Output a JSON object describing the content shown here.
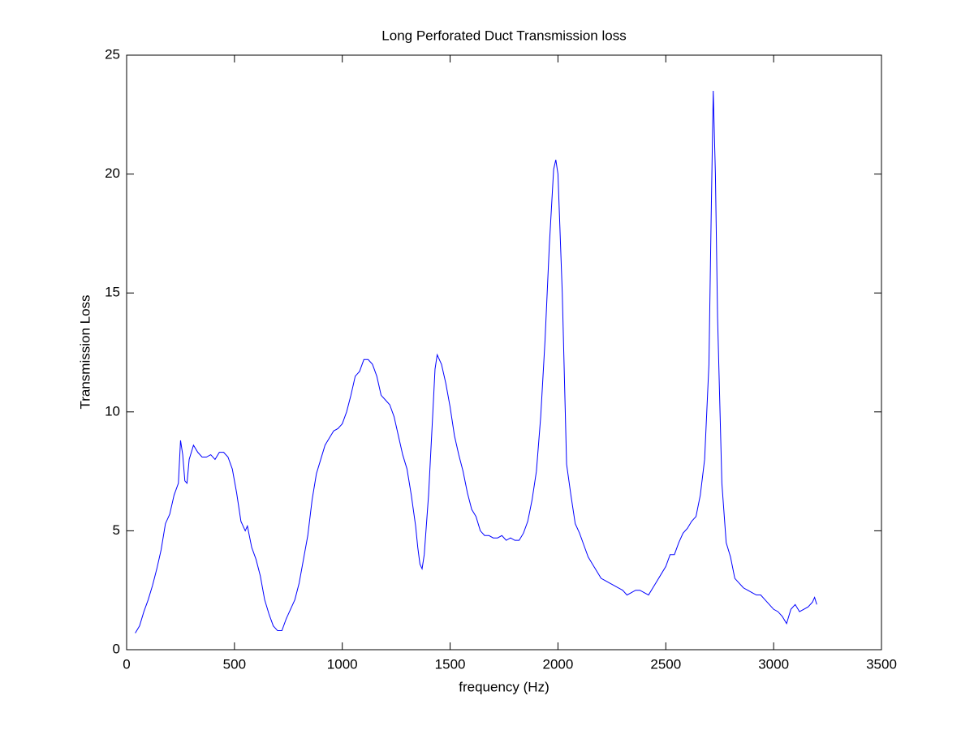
{
  "chart_data": {
    "type": "line",
    "title": "Long Perforated Duct Transmission loss",
    "xlabel": "frequency (Hz)",
    "ylabel": "Transmission Loss",
    "color": "#0000ff",
    "xlim": [
      0,
      3500
    ],
    "xticks": [
      0,
      500,
      1000,
      1500,
      2000,
      2500,
      3000,
      3500
    ],
    "ylim": [
      0,
      25
    ],
    "yticks": [
      0,
      5,
      10,
      15,
      20,
      25
    ],
    "grid": false,
    "x": [
      40,
      60,
      80,
      100,
      120,
      140,
      160,
      180,
      200,
      220,
      240,
      250,
      260,
      270,
      280,
      290,
      310,
      330,
      350,
      370,
      390,
      410,
      430,
      450,
      470,
      490,
      510,
      530,
      550,
      560,
      580,
      600,
      620,
      640,
      660,
      680,
      700,
      720,
      740,
      760,
      780,
      800,
      820,
      840,
      860,
      880,
      900,
      920,
      940,
      960,
      980,
      1000,
      1020,
      1040,
      1060,
      1080,
      1100,
      1120,
      1140,
      1160,
      1180,
      1200,
      1220,
      1240,
      1260,
      1280,
      1300,
      1320,
      1340,
      1350,
      1360,
      1370,
      1380,
      1400,
      1420,
      1430,
      1440,
      1460,
      1480,
      1500,
      1520,
      1540,
      1560,
      1580,
      1600,
      1620,
      1640,
      1660,
      1680,
      1700,
      1720,
      1740,
      1760,
      1780,
      1800,
      1820,
      1840,
      1860,
      1880,
      1900,
      1920,
      1940,
      1960,
      1980,
      1990,
      2000,
      2020,
      2040,
      2060,
      2080,
      2100,
      2120,
      2140,
      2160,
      2180,
      2200,
      2220,
      2240,
      2260,
      2280,
      2300,
      2320,
      2340,
      2360,
      2380,
      2400,
      2420,
      2440,
      2460,
      2480,
      2500,
      2520,
      2540,
      2560,
      2580,
      2600,
      2620,
      2640,
      2660,
      2680,
      2700,
      2710,
      2720,
      2730,
      2740,
      2760,
      2780,
      2800,
      2820,
      2840,
      2860,
      2880,
      2900,
      2920,
      2940,
      2960,
      2980,
      3000,
      3020,
      3040,
      3060,
      3080,
      3100,
      3120,
      3140,
      3160,
      3180,
      3190,
      3200
    ],
    "values": [
      0.7,
      1.0,
      1.6,
      2.1,
      2.7,
      3.4,
      4.2,
      5.3,
      5.7,
      6.5,
      7.0,
      8.8,
      8.2,
      7.1,
      7.0,
      8.0,
      8.6,
      8.3,
      8.1,
      8.1,
      8.2,
      8.0,
      8.3,
      8.3,
      8.1,
      7.6,
      6.6,
      5.4,
      5.0,
      5.2,
      4.3,
      3.8,
      3.1,
      2.1,
      1.5,
      1.0,
      0.8,
      0.8,
      1.3,
      1.7,
      2.1,
      2.8,
      3.8,
      4.8,
      6.3,
      7.4,
      8.0,
      8.6,
      8.9,
      9.2,
      9.3,
      9.5,
      10.0,
      10.7,
      11.5,
      11.7,
      12.2,
      12.2,
      12.0,
      11.5,
      10.7,
      10.5,
      10.3,
      9.8,
      9.0,
      8.2,
      7.6,
      6.5,
      5.2,
      4.3,
      3.6,
      3.4,
      4.0,
      6.5,
      10.0,
      11.8,
      12.4,
      12.0,
      11.2,
      10.2,
      9.0,
      8.2,
      7.5,
      6.6,
      5.9,
      5.6,
      5.0,
      4.8,
      4.8,
      4.7,
      4.7,
      4.8,
      4.6,
      4.7,
      4.6,
      4.6,
      4.9,
      5.4,
      6.3,
      7.5,
      9.8,
      13.0,
      17.0,
      20.2,
      20.6,
      20.0,
      15.0,
      7.8,
      6.5,
      5.3,
      4.9,
      4.4,
      3.9,
      3.6,
      3.3,
      3.0,
      2.9,
      2.8,
      2.7,
      2.6,
      2.5,
      2.3,
      2.4,
      2.5,
      2.5,
      2.4,
      2.3,
      2.6,
      2.9,
      3.2,
      3.5,
      4.0,
      4.0,
      4.5,
      4.9,
      5.1,
      5.4,
      5.6,
      6.5,
      8.0,
      12.0,
      18.0,
      23.5,
      20.0,
      14.0,
      7.0,
      4.5,
      3.9,
      3.0,
      2.8,
      2.6,
      2.5,
      2.4,
      2.3,
      2.3,
      2.1,
      1.9,
      1.7,
      1.6,
      1.4,
      1.1,
      1.7,
      1.9,
      1.6,
      1.7,
      1.8,
      2.0,
      2.2,
      1.9
    ]
  }
}
